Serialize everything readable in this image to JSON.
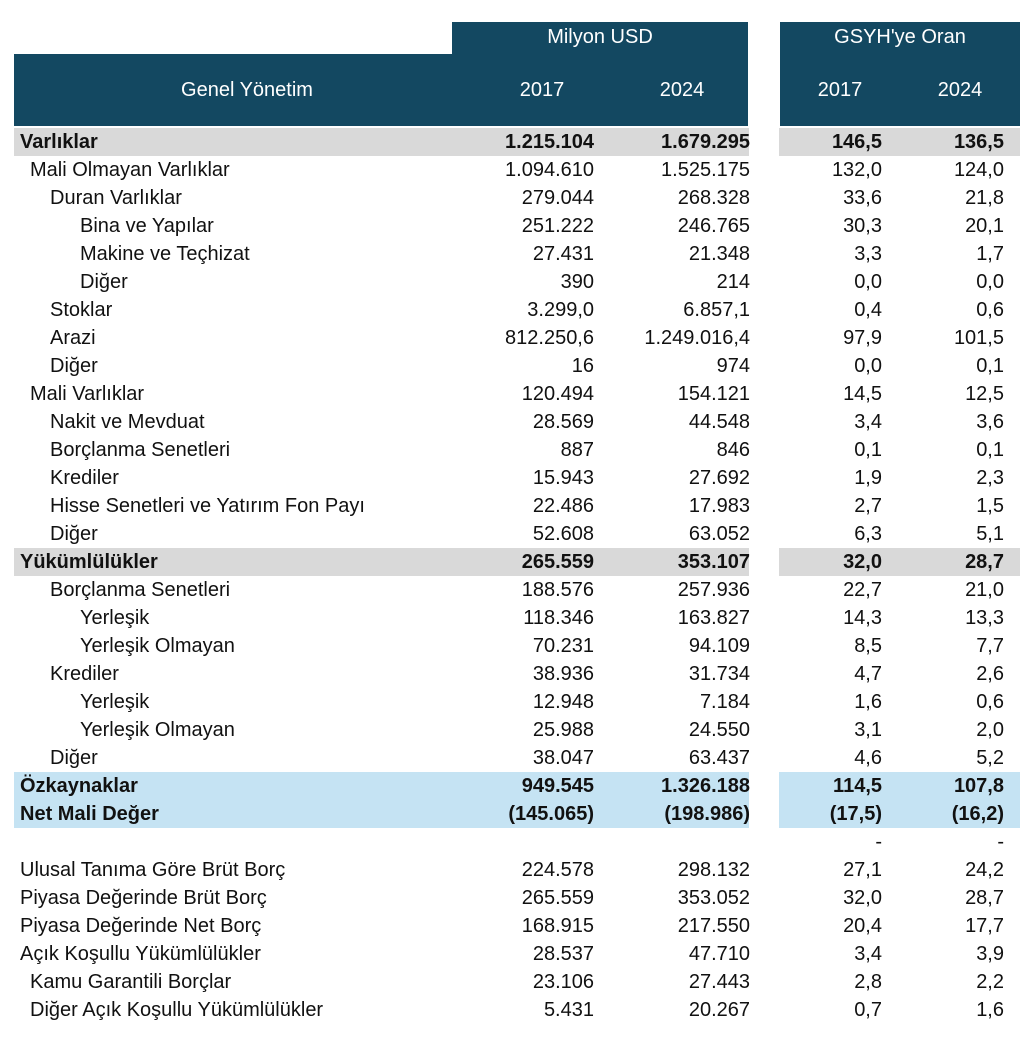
{
  "header": {
    "group_usd": "Milyon USD",
    "group_gdp": "GSYH'ye Oran",
    "row_title": "Genel Yönetim",
    "year_usd_1": "2017",
    "year_usd_2": "2024",
    "year_gdp_1": "2017",
    "year_gdp_2": "2024"
  },
  "rows": [
    {
      "label": "Varlıklar",
      "v": [
        "1.215.104",
        "1.679.295",
        "146,5",
        "136,5"
      ],
      "style": "grey",
      "indent": 0
    },
    {
      "label": "Mali Olmayan Varlıklar",
      "v": [
        "1.094.610",
        "1.525.175",
        "132,0",
        "124,0"
      ],
      "style": "",
      "indent": 1
    },
    {
      "label": "Duran Varlıklar",
      "v": [
        "279.044",
        "268.328",
        "33,6",
        "21,8"
      ],
      "style": "",
      "indent": 2
    },
    {
      "label": "Bina ve Yapılar",
      "v": [
        "251.222",
        "246.765",
        "30,3",
        "20,1"
      ],
      "style": "",
      "indent": 3
    },
    {
      "label": "Makine ve Teçhizat",
      "v": [
        "27.431",
        "21.348",
        "3,3",
        "1,7"
      ],
      "style": "",
      "indent": 3
    },
    {
      "label": "Diğer",
      "v": [
        "390",
        "214",
        "0,0",
        "0,0"
      ],
      "style": "",
      "indent": 3
    },
    {
      "label": "Stoklar",
      "v": [
        "3.299,0",
        "6.857,1",
        "0,4",
        "0,6"
      ],
      "style": "",
      "indent": 2
    },
    {
      "label": "Arazi",
      "v": [
        "812.250,6",
        "1.249.016,4",
        "97,9",
        "101,5"
      ],
      "style": "",
      "indent": 2
    },
    {
      "label": "Diğer",
      "v": [
        "16",
        "974",
        "0,0",
        "0,1"
      ],
      "style": "",
      "indent": 2
    },
    {
      "label": "Mali  Varlıklar",
      "v": [
        "120.494",
        "154.121",
        "14,5",
        "12,5"
      ],
      "style": "",
      "indent": 1
    },
    {
      "label": "Nakit ve Mevduat",
      "v": [
        "28.569",
        "44.548",
        "3,4",
        "3,6"
      ],
      "style": "",
      "indent": 2
    },
    {
      "label": "Borçlanma Senetleri",
      "v": [
        "887",
        "846",
        "0,1",
        "0,1"
      ],
      "style": "",
      "indent": 2
    },
    {
      "label": "Krediler",
      "v": [
        "15.943",
        "27.692",
        "1,9",
        "2,3"
      ],
      "style": "",
      "indent": 2
    },
    {
      "label": "Hisse Senetleri ve Yatırım Fon Payı",
      "v": [
        "22.486",
        "17.983",
        "2,7",
        "1,5"
      ],
      "style": "",
      "indent": 2
    },
    {
      "label": "Diğer",
      "v": [
        "52.608",
        "63.052",
        "6,3",
        "5,1"
      ],
      "style": "",
      "indent": 2
    },
    {
      "label": "Yükümlülükler",
      "v": [
        "265.559",
        "353.107",
        "32,0",
        "28,7"
      ],
      "style": "grey",
      "indent": 0
    },
    {
      "label": "Borçlanma Senetleri",
      "v": [
        "188.576",
        "257.936",
        "22,7",
        "21,0"
      ],
      "style": "",
      "indent": 2
    },
    {
      "label": "Yerleşik",
      "v": [
        "118.346",
        "163.827",
        "14,3",
        "13,3"
      ],
      "style": "",
      "indent": 3
    },
    {
      "label": "Yerleşik Olmayan",
      "v": [
        "70.231",
        "94.109",
        "8,5",
        "7,7"
      ],
      "style": "",
      "indent": 3
    },
    {
      "label": "Krediler",
      "v": [
        "38.936",
        "31.734",
        "4,7",
        "2,6"
      ],
      "style": "",
      "indent": 2
    },
    {
      "label": "Yerleşik",
      "v": [
        "12.948",
        "7.184",
        "1,6",
        "0,6"
      ],
      "style": "",
      "indent": 3
    },
    {
      "label": "Yerleşik Olmayan",
      "v": [
        "25.988",
        "24.550",
        "3,1",
        "2,0"
      ],
      "style": "",
      "indent": 3
    },
    {
      "label": "Diğer",
      "v": [
        "38.047",
        "63.437",
        "4,6",
        "5,2"
      ],
      "style": "",
      "indent": 2
    },
    {
      "label": "Özkaynaklar",
      "v": [
        "949.545",
        "1.326.188",
        "114,5",
        "107,8"
      ],
      "style": "blue",
      "indent": 0
    },
    {
      "label": "Net Mali Değer",
      "v": [
        "(145.065)",
        "(198.986)",
        "(17,5)",
        "(16,2)"
      ],
      "style": "blue",
      "indent": 0
    },
    {
      "label": "",
      "v": [
        "",
        "",
        "-",
        "-"
      ],
      "style": "",
      "indent": 0
    },
    {
      "label": "Ulusal Tanıma Göre Brüt Borç",
      "v": [
        "224.578",
        "298.132",
        "27,1",
        "24,2"
      ],
      "style": "",
      "indent": 0
    },
    {
      "label": "Piyasa Değerinde Brüt Borç",
      "v": [
        "265.559",
        "353.052",
        "32,0",
        "28,7"
      ],
      "style": "",
      "indent": 0
    },
    {
      "label": "Piyasa Değerinde Net Borç",
      "v": [
        "168.915",
        "217.550",
        "20,4",
        "17,7"
      ],
      "style": "",
      "indent": 0
    },
    {
      "label": "Açık Koşullu Yükümlülükler",
      "v": [
        "28.537",
        "47.710",
        "3,4",
        "3,9"
      ],
      "style": "",
      "indent": 0
    },
    {
      "label": "Kamu Garantili Borçlar",
      "v": [
        "23.106",
        "27.443",
        "2,8",
        "2,2"
      ],
      "style": "",
      "indent": 1
    },
    {
      "label": "Diğer Açık Koşullu Yükümlülükler",
      "v": [
        "5.431",
        "20.267",
        "0,7",
        "1,6"
      ],
      "style": "",
      "indent": 1
    }
  ]
}
